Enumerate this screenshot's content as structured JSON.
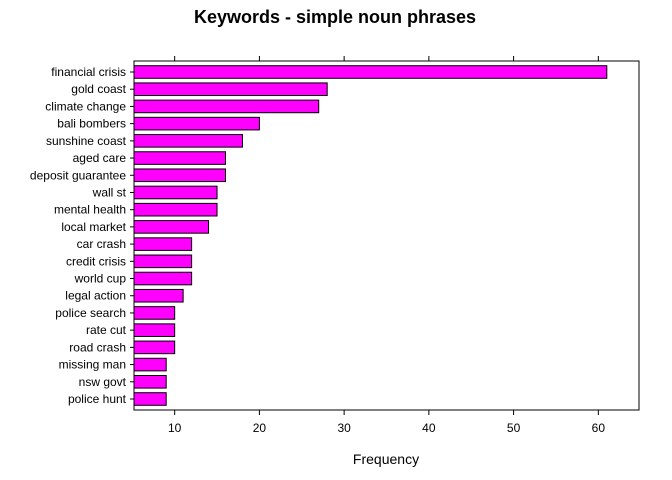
{
  "chart_data": {
    "type": "bar",
    "orientation": "horizontal",
    "title": "Keywords - simple noun phrases",
    "xlabel": "Frequency",
    "ylabel": "",
    "xlim": [
      5.2,
      64.8
    ],
    "xticks": [
      10,
      20,
      30,
      40,
      50,
      60
    ],
    "grid": false,
    "bar_color": "#ff00ff",
    "bar_edge_color": "#000000",
    "categories": [
      "financial crisis",
      "gold coast",
      "climate change",
      "bali bombers",
      "sunshine coast",
      "aged care",
      "deposit guarantee",
      "wall st",
      "mental health",
      "local market",
      "car crash",
      "credit crisis",
      "world cup",
      "legal action",
      "police search",
      "rate cut",
      "road crash",
      "missing man",
      "nsw govt",
      "police hunt"
    ],
    "values": [
      61,
      28,
      27,
      20,
      18,
      16,
      16,
      15,
      15,
      14,
      12,
      12,
      12,
      11,
      10,
      10,
      10,
      9,
      9,
      9
    ]
  }
}
